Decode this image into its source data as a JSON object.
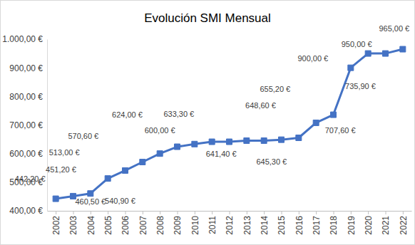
{
  "chart_data": {
    "type": "line",
    "title": "Evolución SMI Mensual",
    "categories": [
      "2002",
      "2003",
      "2004",
      "2005",
      "2006",
      "2007",
      "2008",
      "2009",
      "2010",
      "2011",
      "2012",
      "2013",
      "2014",
      "2015",
      "2016",
      "2017",
      "2018",
      "2019",
      "2020",
      "2021",
      "2022"
    ],
    "values": [
      442.2,
      451.2,
      460.5,
      513.0,
      540.9,
      570.6,
      600.0,
      624.0,
      633.3,
      641.4,
      641.4,
      645.3,
      645.3,
      648.6,
      655.2,
      707.6,
      735.9,
      900.0,
      950.0,
      950.0,
      965.0
    ],
    "value_labels": [
      "442,20 €",
      "451,20 €",
      "460,50 €",
      "513,00 €",
      "540,90 €",
      "570,60 €",
      "600,00 €",
      "624,00 €",
      "633,30 €",
      "641,40 €",
      null,
      "645,30 €",
      null,
      "648,60 €",
      "655,20 €",
      "707,60 €",
      "735,90 €",
      "900,00 €",
      "950,00 €",
      null,
      "965,00 €"
    ],
    "data_labels": true,
    "color": "#4472c4",
    "marker": "square",
    "line_style": "solid",
    "ylim": [
      400,
      1000
    ],
    "yticks": [
      {
        "value": 400,
        "label": "400,00 €"
      },
      {
        "value": 500,
        "label": "500,00 €"
      },
      {
        "value": 600,
        "label": "600,00 €"
      },
      {
        "value": 700,
        "label": "700,00 €"
      },
      {
        "value": 800,
        "label": "800,00 €"
      },
      {
        "value": 900,
        "label": "900,00 €"
      },
      {
        "value": 1000,
        "label": "1.000,00 €"
      }
    ],
    "grid": false
  }
}
